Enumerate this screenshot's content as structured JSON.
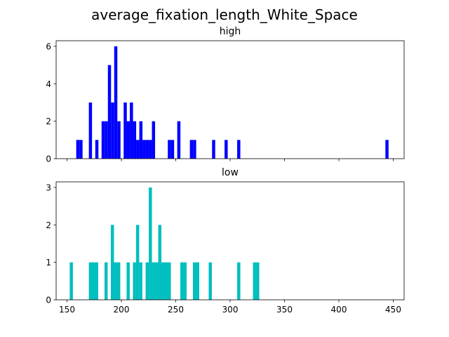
{
  "figure": {
    "suptitle": "average_fixation_length_White_Space"
  },
  "chart_data": [
    {
      "type": "bar",
      "title": "high",
      "xlabel": "",
      "ylabel": "",
      "color": "#0000ff",
      "xlim": [
        140,
        460
      ],
      "ylim": [
        0,
        6.3
      ],
      "bin_width": 2.9,
      "yticks": [
        0,
        2,
        4,
        6
      ],
      "xticks": [
        150,
        200,
        250,
        300,
        350,
        400,
        450
      ],
      "show_xtick_labels": false,
      "bins": [
        {
          "x": 158.5,
          "value": 1
        },
        {
          "x": 161.4,
          "value": 1
        },
        {
          "x": 170.1,
          "value": 3
        },
        {
          "x": 176.0,
          "value": 1
        },
        {
          "x": 181.8,
          "value": 2
        },
        {
          "x": 184.7,
          "value": 2
        },
        {
          "x": 187.6,
          "value": 5
        },
        {
          "x": 190.5,
          "value": 3
        },
        {
          "x": 193.4,
          "value": 6
        },
        {
          "x": 196.3,
          "value": 2
        },
        {
          "x": 202.1,
          "value": 3
        },
        {
          "x": 204.9,
          "value": 2
        },
        {
          "x": 207.8,
          "value": 3
        },
        {
          "x": 210.7,
          "value": 2
        },
        {
          "x": 213.6,
          "value": 1
        },
        {
          "x": 216.5,
          "value": 2
        },
        {
          "x": 219.4,
          "value": 1
        },
        {
          "x": 222.3,
          "value": 1
        },
        {
          "x": 225.2,
          "value": 1
        },
        {
          "x": 228.1,
          "value": 2
        },
        {
          "x": 242.7,
          "value": 1
        },
        {
          "x": 245.6,
          "value": 1
        },
        {
          "x": 251.4,
          "value": 2
        },
        {
          "x": 263.0,
          "value": 1
        },
        {
          "x": 265.9,
          "value": 1
        },
        {
          "x": 283.4,
          "value": 1
        },
        {
          "x": 294.9,
          "value": 1
        },
        {
          "x": 306.5,
          "value": 1
        },
        {
          "x": 442.8,
          "value": 1
        }
      ]
    },
    {
      "type": "bar",
      "title": "low",
      "xlabel": "",
      "ylabel": "",
      "color": "#00bfbf",
      "xlim": [
        140,
        460
      ],
      "ylim": [
        0,
        3.15
      ],
      "bin_width": 2.9,
      "yticks": [
        0,
        1,
        2,
        3
      ],
      "xticks": [
        150,
        200,
        250,
        300,
        350,
        400,
        450
      ],
      "xtick_labels": [
        "150",
        "200",
        "250",
        "300",
        "350",
        "400",
        "450"
      ],
      "show_xtick_labels": true,
      "bins": [
        {
          "x": 152.5,
          "value": 1
        },
        {
          "x": 170.1,
          "value": 1
        },
        {
          "x": 172.9,
          "value": 1
        },
        {
          "x": 175.8,
          "value": 1
        },
        {
          "x": 184.5,
          "value": 1
        },
        {
          "x": 190.3,
          "value": 2
        },
        {
          "x": 193.2,
          "value": 1
        },
        {
          "x": 196.1,
          "value": 1
        },
        {
          "x": 204.8,
          "value": 1
        },
        {
          "x": 210.6,
          "value": 1
        },
        {
          "x": 213.5,
          "value": 2
        },
        {
          "x": 216.4,
          "value": 1
        },
        {
          "x": 222.3,
          "value": 1
        },
        {
          "x": 225.2,
          "value": 3
        },
        {
          "x": 228.1,
          "value": 1
        },
        {
          "x": 231.0,
          "value": 1
        },
        {
          "x": 233.9,
          "value": 2
        },
        {
          "x": 236.8,
          "value": 1
        },
        {
          "x": 239.7,
          "value": 1
        },
        {
          "x": 242.6,
          "value": 1
        },
        {
          "x": 254.2,
          "value": 1
        },
        {
          "x": 257.1,
          "value": 1
        },
        {
          "x": 265.8,
          "value": 1
        },
        {
          "x": 268.7,
          "value": 1
        },
        {
          "x": 280.3,
          "value": 1
        },
        {
          "x": 306.5,
          "value": 1
        },
        {
          "x": 321.0,
          "value": 1
        },
        {
          "x": 323.9,
          "value": 1
        }
      ]
    }
  ]
}
